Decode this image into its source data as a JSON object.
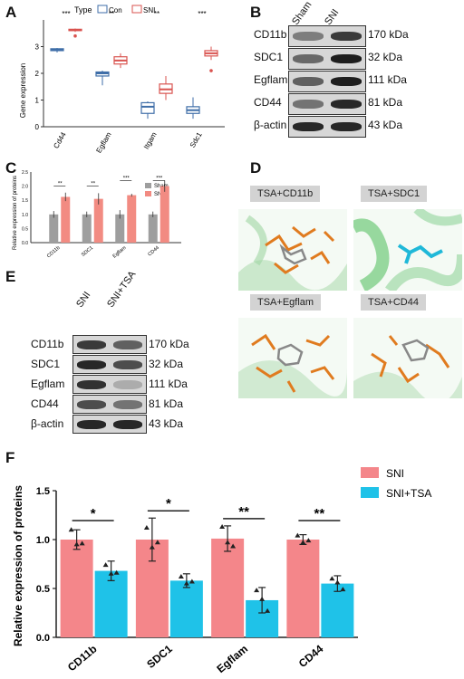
{
  "panels": {
    "A": "A",
    "B": "B",
    "C": "C",
    "D": "D",
    "E": "E",
    "F": "F"
  },
  "panelA": {
    "legend_title": "Type",
    "legend_items": [
      {
        "name": "Con",
        "color": "#3f6ea8"
      },
      {
        "name": "SNI",
        "color": "#d9534f"
      }
    ],
    "ylabel": "Gene expression",
    "yticks": [
      "0",
      "1",
      "2",
      "3"
    ],
    "categories": [
      "Cd44",
      "Egflam",
      "Itgam",
      "Sdc1"
    ],
    "sig": [
      "***",
      "**",
      "**",
      "***"
    ]
  },
  "panelB": {
    "lanes": [
      "Sham",
      "SNI"
    ],
    "rows": [
      {
        "protein": "CD11b",
        "size": "170 kDa"
      },
      {
        "protein": "SDC1",
        "size": "32 kDa"
      },
      {
        "protein": "Egflam",
        "size": "111 kDa"
      },
      {
        "protein": "CD44",
        "size": "81 kDa"
      },
      {
        "protein": "β-actin",
        "size": "43 kDa"
      }
    ]
  },
  "panelC": {
    "ylabel": "Relative expression of proteins",
    "legend": [
      "Sham",
      "SNI"
    ],
    "categories": [
      "CD11b",
      "SDC1",
      "Egflam",
      "CD44"
    ],
    "sig": [
      "**",
      "**",
      "***",
      "***"
    ],
    "yticks": [
      "0.0",
      "0.5",
      "1.0",
      "1.5",
      "2.0",
      "2.5"
    ]
  },
  "panelD": {
    "titles": [
      "TSA+CD11b",
      "TSA+SDC1",
      "TSA+Egflam",
      "TSA+CD44"
    ]
  },
  "panelE": {
    "lanes": [
      "SNI",
      "SNI+TSA"
    ],
    "rows": [
      {
        "protein": "CD11b",
        "size": "170 kDa"
      },
      {
        "protein": "SDC1",
        "size": "32 kDa"
      },
      {
        "protein": "Egflam",
        "size": "111 kDa"
      },
      {
        "protein": "CD44",
        "size": "81 kDa"
      },
      {
        "protein": "β-actin",
        "size": "43 kDa"
      }
    ]
  },
  "chart_data": [
    {
      "type": "box",
      "title": "",
      "ylabel": "Gene expression",
      "categories": [
        "Cd44",
        "Egflam",
        "Itgam",
        "Sdc1"
      ],
      "series": [
        {
          "name": "Con",
          "color": "#3f6ea8",
          "boxes": [
            [
              2.78,
              2.85,
              2.88,
              2.92,
              2.95
            ],
            [
              1.55,
              1.9,
              2.0,
              2.05,
              2.1
            ],
            [
              0.3,
              0.5,
              0.75,
              0.9,
              0.95
            ],
            [
              0.3,
              0.5,
              0.62,
              0.75,
              1.1
            ]
          ]
        },
        {
          "name": "SNI",
          "color": "#d9534f",
          "boxes": [
            [
              3.55,
              3.6,
              3.62,
              3.65,
              3.68
            ],
            [
              2.2,
              2.35,
              2.48,
              2.62,
              2.75
            ],
            [
              1.0,
              1.25,
              1.4,
              1.6,
              1.9
            ],
            [
              2.5,
              2.65,
              2.75,
              2.85,
              3.0
            ]
          ]
        }
      ],
      "outliers": [
        {
          "category": "Cd44",
          "series": "SNI",
          "value": 3.4
        },
        {
          "category": "Sdc1",
          "series": "SNI",
          "value": 2.1
        }
      ],
      "ylim": [
        0,
        4
      ]
    },
    {
      "type": "bar",
      "title": "",
      "ylabel": "Relative expression of proteins",
      "categories": [
        "CD11b",
        "SDC1",
        "Egflam",
        "CD44"
      ],
      "series": [
        {
          "name": "Sham",
          "color": "#9e9e9e",
          "values": [
            1.0,
            1.0,
            1.0,
            1.0
          ],
          "errors": [
            0.12,
            0.1,
            0.15,
            0.1
          ]
        },
        {
          "name": "SNI",
          "color": "#f28b82",
          "values": [
            1.62,
            1.55,
            1.68,
            2.0
          ],
          "errors": [
            0.15,
            0.2,
            0.05,
            0.2
          ]
        }
      ],
      "ylim": [
        0,
        2.5
      ]
    },
    {
      "type": "bar",
      "title": "",
      "ylabel": "Relative expression of proteins",
      "categories": [
        "CD11b",
        "SDC1",
        "Egflam",
        "CD44"
      ],
      "series": [
        {
          "name": "SNI",
          "color": "#f4868a",
          "values": [
            1.0,
            1.0,
            1.01,
            1.0
          ],
          "errors": [
            0.1,
            0.22,
            0.13,
            0.05
          ],
          "points": [
            [
              1.1,
              0.95,
              0.96
            ],
            [
              1.12,
              0.92,
              0.97
            ],
            [
              1.13,
              0.97,
              0.93
            ],
            [
              1.04,
              0.97,
              0.99
            ]
          ]
        },
        {
          "name": "SNI+TSA",
          "color": "#1fc2e8",
          "values": [
            0.68,
            0.58,
            0.38,
            0.55
          ],
          "errors": [
            0.1,
            0.07,
            0.13,
            0.08
          ],
          "points": [
            [
              0.74,
              0.65,
              0.66
            ],
            [
              0.62,
              0.55,
              0.57
            ],
            [
              0.48,
              0.39,
              0.27
            ],
            [
              0.6,
              0.56,
              0.49
            ]
          ]
        }
      ],
      "sig": [
        "*",
        "*",
        "**",
        "**"
      ],
      "yticks": [
        "0.0",
        "0.5",
        "1.0",
        "1.5"
      ],
      "ylim": [
        0,
        1.5
      ]
    }
  ]
}
